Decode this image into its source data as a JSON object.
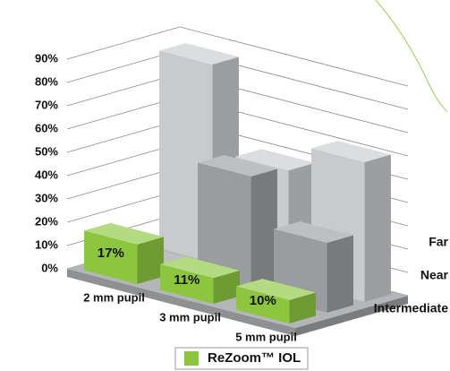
{
  "chart_data": {
    "type": "bar3d",
    "categories": [
      "2 mm pupil",
      "3 mm pupil",
      "5 mm pupil"
    ],
    "series": [
      {
        "name": "Intermediate",
        "color": "#8cc63f",
        "values": [
          17,
          11,
          10
        ],
        "value_labels": [
          "17%",
          "11%",
          "10%"
        ]
      },
      {
        "name": "Near",
        "color": "#9a9c9f",
        "values": [
          2,
          50,
          30
        ]
      },
      {
        "name": "Far",
        "color": "#c8cacc",
        "values": [
          85,
          48,
          60
        ]
      }
    ],
    "ylim": [
      0,
      90
    ],
    "yticks": [
      {
        "value": 0,
        "label": "0%"
      },
      {
        "value": 10,
        "label": "10%"
      },
      {
        "value": 20,
        "label": "20%"
      },
      {
        "value": 30,
        "label": "30%"
      },
      {
        "value": 40,
        "label": "40%"
      },
      {
        "value": 50,
        "label": "50%"
      },
      {
        "value": 60,
        "label": "60%"
      },
      {
        "value": 70,
        "label": "70%"
      },
      {
        "value": 80,
        "label": "80%"
      },
      {
        "value": 90,
        "label": "90%"
      }
    ],
    "grid": true,
    "legend": "ReZoom™ IOL"
  }
}
